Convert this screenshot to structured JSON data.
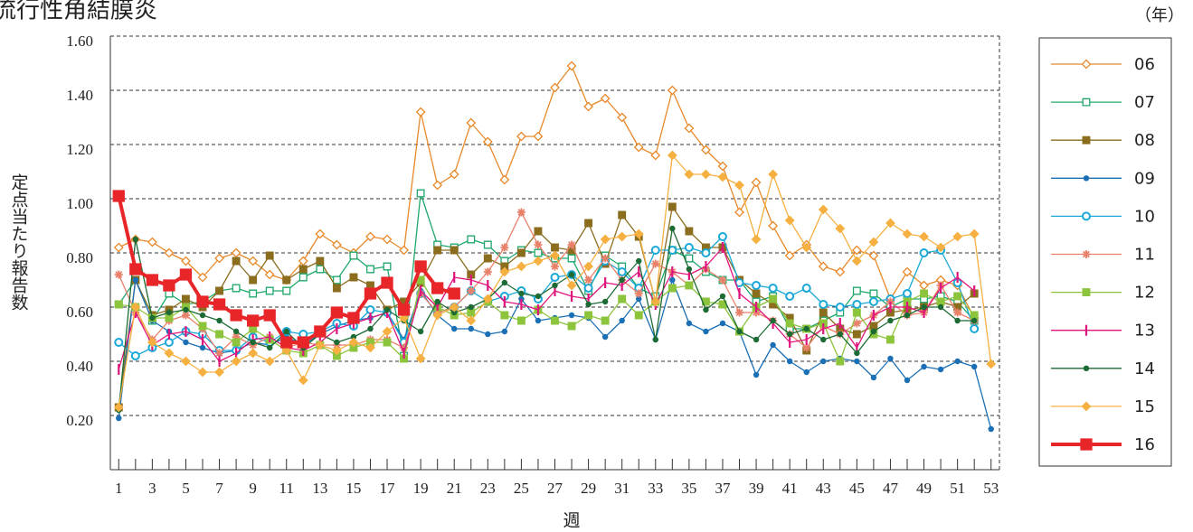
{
  "chart_data": {
    "type": "line",
    "title": "流行性角結膜炎",
    "y_label": "定点当たり報告数",
    "x_label": "週",
    "legend_title": "（年）",
    "categories": [
      "1",
      null,
      "3",
      null,
      "5",
      null,
      "7",
      null,
      "9",
      null,
      "11",
      null,
      "13",
      null,
      "15",
      null,
      "17",
      null,
      "19",
      null,
      "21",
      null,
      "23",
      null,
      "25",
      null,
      "27",
      null,
      "29",
      null,
      "31",
      null,
      "33",
      null,
      "35",
      null,
      "37",
      null,
      "39",
      null,
      "41",
      null,
      "43",
      null,
      "45",
      null,
      "47",
      null,
      "49",
      null,
      "51",
      null,
      "53"
    ],
    "ylim": [
      0,
      1.6
    ],
    "yticks": [
      {
        "value": 0.2,
        "label": "0.20"
      },
      {
        "value": 0.4,
        "label": "0.40"
      },
      {
        "value": 0.6,
        "label": "0.60"
      },
      {
        "value": 0.8,
        "label": "0.80"
      },
      {
        "value": 1.0,
        "label": "1.00"
      },
      {
        "value": 1.2,
        "label": "1.20"
      },
      {
        "value": 1.4,
        "label": "1.40"
      },
      {
        "value": 1.6,
        "label": "1.60"
      }
    ],
    "grid": true,
    "legend": "right",
    "series": [
      {
        "name": "06",
        "color": "#e8892a",
        "marker": "diamond-open",
        "values": [
          0.82,
          0.85,
          0.84,
          0.8,
          0.77,
          0.71,
          0.78,
          0.8,
          0.77,
          0.72,
          0.7,
          0.77,
          0.87,
          0.83,
          0.8,
          0.86,
          0.85,
          0.81,
          1.32,
          1.05,
          1.09,
          1.28,
          1.21,
          1.07,
          1.23,
          1.23,
          1.41,
          1.49,
          1.34,
          1.37,
          1.3,
          1.19,
          1.16,
          1.4,
          1.26,
          1.18,
          1.12,
          0.95,
          1.06,
          0.9,
          0.79,
          0.83,
          0.75,
          0.73,
          0.81,
          0.79,
          0.63,
          0.73,
          0.68,
          0.7,
          0.68,
          0.56,
          null
        ]
      },
      {
        "name": "07",
        "color": "#1fa86b",
        "marker": "square-open",
        "values": [
          0.61,
          0.7,
          0.55,
          0.65,
          0.61,
          0.62,
          0.66,
          0.67,
          0.65,
          0.66,
          0.66,
          0.71,
          0.74,
          0.7,
          0.79,
          0.74,
          0.75,
          0.42,
          1.02,
          0.83,
          0.82,
          0.85,
          0.83,
          0.77,
          0.81,
          0.8,
          0.78,
          0.78,
          0.66,
          0.79,
          0.75,
          0.67,
          0.64,
          0.81,
          0.78,
          0.73,
          0.7,
          0.7,
          0.62,
          0.64,
          0.52,
          0.52,
          0.55,
          0.58,
          0.66,
          0.65,
          0.6,
          0.63,
          0.63,
          0.64,
          0.62,
          0.55,
          null
        ]
      },
      {
        "name": "08",
        "color": "#8b6d1e",
        "marker": "square",
        "values": [
          0.23,
          0.7,
          0.57,
          0.59,
          0.63,
          0.6,
          0.66,
          0.77,
          0.7,
          0.79,
          0.7,
          0.74,
          0.77,
          0.67,
          0.71,
          0.68,
          0.59,
          0.62,
          0.69,
          0.81,
          0.81,
          0.72,
          0.78,
          0.75,
          0.8,
          0.88,
          0.82,
          0.81,
          0.91,
          0.76,
          0.94,
          0.86,
          0.62,
          0.97,
          0.88,
          0.82,
          0.82,
          0.7,
          0.65,
          0.61,
          0.56,
          0.44,
          0.58,
          0.52,
          0.5,
          0.53,
          0.58,
          0.59,
          0.6,
          0.62,
          0.6,
          0.65,
          null
        ]
      },
      {
        "name": "09",
        "color": "#1a6fb5",
        "marker": "circle",
        "values": [
          0.19,
          0.7,
          0.55,
          0.51,
          0.47,
          0.45,
          0.43,
          0.44,
          0.47,
          0.46,
          0.49,
          0.46,
          0.5,
          0.53,
          0.55,
          0.56,
          0.58,
          0.48,
          0.66,
          0.57,
          0.52,
          0.52,
          0.5,
          0.51,
          0.63,
          0.55,
          0.56,
          0.57,
          0.56,
          0.49,
          0.55,
          0.63,
          0.48,
          0.7,
          0.54,
          0.51,
          0.54,
          0.51,
          0.35,
          0.46,
          0.4,
          0.36,
          0.4,
          0.41,
          0.4,
          0.34,
          0.41,
          0.33,
          0.38,
          0.37,
          0.4,
          0.38,
          0.15
        ]
      },
      {
        "name": "10",
        "color": "#1aa8d8",
        "marker": "circle-open",
        "values": [
          0.47,
          0.42,
          0.45,
          0.47,
          0.51,
          0.5,
          0.44,
          0.44,
          0.49,
          0.47,
          0.51,
          0.5,
          0.51,
          0.54,
          0.53,
          0.59,
          0.58,
          0.47,
          0.65,
          0.58,
          0.6,
          0.66,
          0.62,
          0.64,
          0.66,
          0.63,
          0.71,
          0.72,
          0.67,
          0.77,
          0.73,
          0.67,
          0.81,
          0.81,
          0.82,
          0.8,
          0.86,
          0.69,
          0.68,
          0.67,
          0.64,
          0.67,
          0.61,
          0.6,
          0.61,
          0.62,
          0.63,
          0.65,
          0.8,
          0.81,
          0.69,
          0.52,
          null
        ]
      },
      {
        "name": "11",
        "color": "#e8806a",
        "marker": "asterisk",
        "values": [
          0.72,
          0.58,
          0.48,
          0.55,
          0.57,
          0.52,
          0.43,
          0.49,
          0.46,
          0.49,
          0.45,
          0.47,
          0.46,
          0.46,
          0.46,
          0.48,
          0.48,
          0.45,
          0.65,
          0.58,
          0.6,
          0.66,
          0.73,
          0.82,
          0.95,
          0.83,
          0.75,
          0.83,
          0.7,
          0.78,
          0.7,
          0.65,
          0.76,
          0.73,
          0.68,
          0.74,
          0.7,
          0.58,
          0.58,
          0.55,
          0.5,
          0.45,
          0.53,
          0.5,
          0.54,
          0.57,
          0.62,
          0.57,
          0.58,
          0.68,
          0.58,
          0.55,
          null
        ]
      },
      {
        "name": "12",
        "color": "#8cc43c",
        "marker": "square",
        "values": [
          0.61,
          0.6,
          0.56,
          0.56,
          0.6,
          0.53,
          0.5,
          0.47,
          0.52,
          0.48,
          0.44,
          0.43,
          0.46,
          0.42,
          0.45,
          0.47,
          0.47,
          0.41,
          0.7,
          0.6,
          0.57,
          0.58,
          0.62,
          0.57,
          0.55,
          0.59,
          0.55,
          0.53,
          0.57,
          0.55,
          0.63,
          0.57,
          0.62,
          0.67,
          0.68,
          0.62,
          0.61,
          0.51,
          0.6,
          0.63,
          0.54,
          0.52,
          0.54,
          0.4,
          0.58,
          0.5,
          0.48,
          0.62,
          0.65,
          0.62,
          0.64,
          0.57,
          null
        ]
      },
      {
        "name": "13",
        "color": "#e0147c",
        "marker": "bar",
        "values": [
          0.37,
          0.58,
          0.46,
          0.5,
          0.51,
          0.48,
          0.4,
          0.43,
          0.48,
          0.49,
          0.45,
          0.44,
          0.47,
          0.52,
          0.54,
          0.56,
          0.58,
          0.43,
          0.66,
          0.6,
          0.71,
          0.7,
          0.68,
          0.62,
          0.61,
          0.59,
          0.66,
          0.64,
          0.63,
          0.69,
          0.68,
          0.73,
          0.61,
          0.73,
          0.72,
          0.75,
          0.82,
          0.65,
          0.6,
          0.54,
          0.47,
          0.48,
          0.52,
          0.54,
          0.45,
          0.57,
          0.6,
          0.6,
          0.58,
          0.67,
          0.71,
          0.66,
          null
        ]
      },
      {
        "name": "14",
        "color": "#1c6b34",
        "marker": "circle",
        "values": [
          0.22,
          0.85,
          0.56,
          0.58,
          0.59,
          0.57,
          0.55,
          0.51,
          0.47,
          0.45,
          0.51,
          0.45,
          0.5,
          0.47,
          0.49,
          0.52,
          0.59,
          0.55,
          0.51,
          0.62,
          0.58,
          0.6,
          0.63,
          0.69,
          0.65,
          0.64,
          0.68,
          0.72,
          0.61,
          0.62,
          0.7,
          0.77,
          0.48,
          0.89,
          0.74,
          0.59,
          0.64,
          0.51,
          0.48,
          0.55,
          0.5,
          0.52,
          0.48,
          0.5,
          0.43,
          0.51,
          0.55,
          0.57,
          0.6,
          0.6,
          0.55,
          0.55,
          null
        ]
      },
      {
        "name": "15",
        "color": "#f5b041",
        "marker": "diamond",
        "values": [
          0.23,
          0.6,
          0.47,
          0.43,
          0.4,
          0.36,
          0.36,
          0.4,
          0.43,
          0.4,
          0.44,
          0.33,
          0.46,
          0.44,
          0.47,
          0.45,
          0.51,
          0.56,
          0.41,
          0.57,
          0.6,
          0.55,
          0.63,
          0.73,
          0.75,
          0.77,
          0.79,
          0.68,
          0.75,
          0.85,
          0.86,
          0.87,
          0.62,
          1.16,
          1.09,
          1.09,
          1.08,
          1.05,
          0.85,
          1.09,
          0.92,
          0.82,
          0.96,
          0.89,
          0.77,
          0.84,
          0.91,
          0.87,
          0.86,
          0.82,
          0.86,
          0.87,
          0.39
        ]
      },
      {
        "name": "16",
        "color": "#e8262a",
        "marker": "square-big",
        "values": [
          1.01,
          0.74,
          0.7,
          0.68,
          0.72,
          0.62,
          0.61,
          0.57,
          0.55,
          0.57,
          0.47,
          0.47,
          0.51,
          0.58,
          0.56,
          0.65,
          0.69,
          0.59,
          0.75,
          0.67,
          0.65,
          null,
          null,
          null,
          null,
          null,
          null,
          null,
          null,
          null,
          null,
          null,
          null,
          null,
          null,
          null,
          null,
          null,
          null,
          null,
          null,
          null,
          null,
          null,
          null,
          null,
          null,
          null,
          null,
          null,
          null,
          null,
          null
        ]
      }
    ]
  }
}
